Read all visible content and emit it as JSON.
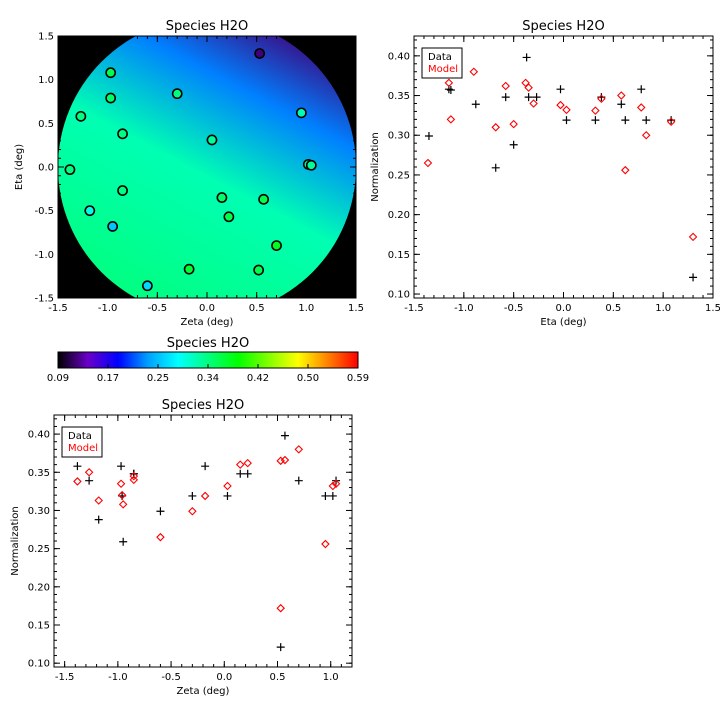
{
  "colorbar": {
    "title": "Species H2O",
    "ticks": [
      "0.09",
      "0.17",
      "0.25",
      "0.34",
      "0.42",
      "0.50",
      "0.59"
    ],
    "colors": [
      "#000000",
      "#6a00c8",
      "#0000ff",
      "#00a0ff",
      "#00ffff",
      "#00ff80",
      "#00ff00",
      "#80ff00",
      "#ffff00",
      "#ff8000",
      "#ff0000"
    ]
  },
  "chart_data": [
    {
      "type": "heatmap",
      "title": "Species H2O",
      "xlabel": "Zeta (deg)",
      "ylabel": "Eta (deg)",
      "xlim": [
        -1.5,
        1.5
      ],
      "ylim": [
        -1.5,
        1.5
      ],
      "xticks": [
        "-1.5",
        "-1.0",
        "-0.5",
        "0.0",
        "0.5",
        "1.0",
        "1.5"
      ],
      "yticks": [
        "-1.5",
        "-1.0",
        "-0.5",
        "0.0",
        "0.5",
        "1.0",
        "1.5"
      ],
      "field_range": [
        0.09,
        0.59
      ],
      "field_corner_values": {
        "top_right": 0.12,
        "top_left": 0.23,
        "center": 0.32,
        "bottom": 0.34
      },
      "points": [
        {
          "zeta": 0.53,
          "eta": 1.3,
          "value": 0.12
        },
        {
          "zeta": -0.97,
          "eta": 1.08,
          "value": 0.36
        },
        {
          "zeta": -0.3,
          "eta": 0.84,
          "value": 0.34
        },
        {
          "zeta": -0.97,
          "eta": 0.79,
          "value": 0.35
        },
        {
          "zeta": 0.95,
          "eta": 0.62,
          "value": 0.32
        },
        {
          "zeta": -1.27,
          "eta": 0.58,
          "value": 0.34
        },
        {
          "zeta": -0.85,
          "eta": 0.38,
          "value": 0.34
        },
        {
          "zeta": 0.05,
          "eta": 0.31,
          "value": 0.33
        },
        {
          "zeta": 1.02,
          "eta": 0.03,
          "value": 0.33
        },
        {
          "zeta": 1.05,
          "eta": 0.02,
          "value": 0.33
        },
        {
          "zeta": -1.38,
          "eta": -0.03,
          "value": 0.34
        },
        {
          "zeta": -0.85,
          "eta": -0.27,
          "value": 0.34
        },
        {
          "zeta": 0.15,
          "eta": -0.35,
          "value": 0.35
        },
        {
          "zeta": 0.57,
          "eta": -0.37,
          "value": 0.36
        },
        {
          "zeta": -1.18,
          "eta": -0.5,
          "value": 0.3
        },
        {
          "zeta": 0.22,
          "eta": -0.57,
          "value": 0.36
        },
        {
          "zeta": -0.95,
          "eta": -0.68,
          "value": 0.26
        },
        {
          "zeta": 0.7,
          "eta": -0.9,
          "value": 0.38
        },
        {
          "zeta": -0.18,
          "eta": -1.17,
          "value": 0.37
        },
        {
          "zeta": 0.52,
          "eta": -1.18,
          "value": 0.36
        },
        {
          "zeta": -0.6,
          "eta": -1.36,
          "value": 0.27
        }
      ]
    },
    {
      "type": "scatter",
      "title": "Species H2O",
      "xlabel": "Eta (deg)",
      "ylabel": "Normalization",
      "xlim": [
        -1.5,
        1.5
      ],
      "ylim": [
        0.095,
        0.425
      ],
      "xticks": [
        "-1.5",
        "-1.0",
        "-0.5",
        "0.0",
        "0.5",
        "1.0",
        "1.5"
      ],
      "yticks": [
        "0.10",
        "0.15",
        "0.20",
        "0.25",
        "0.30",
        "0.35",
        "0.40"
      ],
      "legend_position": "top-left",
      "series": [
        {
          "name": "Data",
          "marker": "+",
          "color": "#000000",
          "x": [
            -1.35,
            -1.15,
            -1.13,
            -0.88,
            -0.68,
            -0.58,
            -0.5,
            -0.37,
            -0.35,
            -0.27,
            -0.03,
            0.03,
            0.32,
            0.38,
            0.58,
            0.62,
            0.78,
            0.83,
            1.08,
            1.3
          ],
          "y": [
            0.299,
            0.358,
            0.357,
            0.339,
            0.259,
            0.348,
            0.288,
            0.398,
            0.348,
            0.348,
            0.358,
            0.319,
            0.319,
            0.348,
            0.339,
            0.319,
            0.358,
            0.319,
            0.319,
            0.121
          ]
        },
        {
          "name": "Model",
          "marker": "diamond",
          "color": "#ff0000",
          "x": [
            -1.36,
            -1.15,
            -1.13,
            -0.9,
            -0.68,
            -0.58,
            -0.5,
            -0.38,
            -0.35,
            -0.3,
            -0.03,
            0.03,
            0.32,
            0.38,
            0.58,
            0.62,
            0.78,
            0.83,
            1.08,
            1.3
          ],
          "y": [
            0.265,
            0.366,
            0.32,
            0.38,
            0.31,
            0.362,
            0.314,
            0.366,
            0.36,
            0.34,
            0.338,
            0.332,
            0.331,
            0.346,
            0.35,
            0.256,
            0.335,
            0.3,
            0.317,
            0.172
          ]
        }
      ]
    },
    {
      "type": "scatter",
      "title": "Species H2O",
      "xlabel": "Zeta (deg)",
      "ylabel": "Normalization",
      "xlim": [
        -1.6,
        1.2
      ],
      "ylim": [
        0.095,
        0.425
      ],
      "xticks": [
        "-1.5",
        "-1.0",
        "-0.5",
        "0.0",
        "0.5",
        "1.0"
      ],
      "yticks": [
        "0.10",
        "0.15",
        "0.20",
        "0.25",
        "0.30",
        "0.35",
        "0.40"
      ],
      "legend_position": "top-left",
      "series": [
        {
          "name": "Data",
          "marker": "+",
          "color": "#000000",
          "x": [
            -1.38,
            -1.27,
            -1.18,
            -0.97,
            -0.96,
            -0.95,
            -0.85,
            -0.85,
            -0.6,
            -0.3,
            -0.18,
            0.03,
            0.15,
            0.22,
            0.53,
            0.57,
            0.7,
            0.95,
            1.02,
            1.05
          ],
          "y": [
            0.358,
            0.339,
            0.288,
            0.358,
            0.319,
            0.259,
            0.348,
            0.348,
            0.299,
            0.319,
            0.358,
            0.319,
            0.348,
            0.348,
            0.121,
            0.398,
            0.339,
            0.319,
            0.319,
            0.339
          ]
        },
        {
          "name": "Model",
          "marker": "diamond",
          "color": "#ff0000",
          "x": [
            -1.38,
            -1.27,
            -1.18,
            -0.97,
            -0.96,
            -0.95,
            -0.85,
            -0.85,
            -0.6,
            -0.3,
            -0.18,
            0.03,
            0.15,
            0.22,
            0.53,
            0.53,
            0.57,
            0.7,
            0.95,
            1.02,
            1.05
          ],
          "y": [
            0.338,
            0.35,
            0.313,
            0.335,
            0.32,
            0.308,
            0.345,
            0.34,
            0.265,
            0.299,
            0.319,
            0.332,
            0.36,
            0.362,
            0.365,
            0.172,
            0.366,
            0.38,
            0.256,
            0.332,
            0.335
          ]
        }
      ]
    }
  ]
}
